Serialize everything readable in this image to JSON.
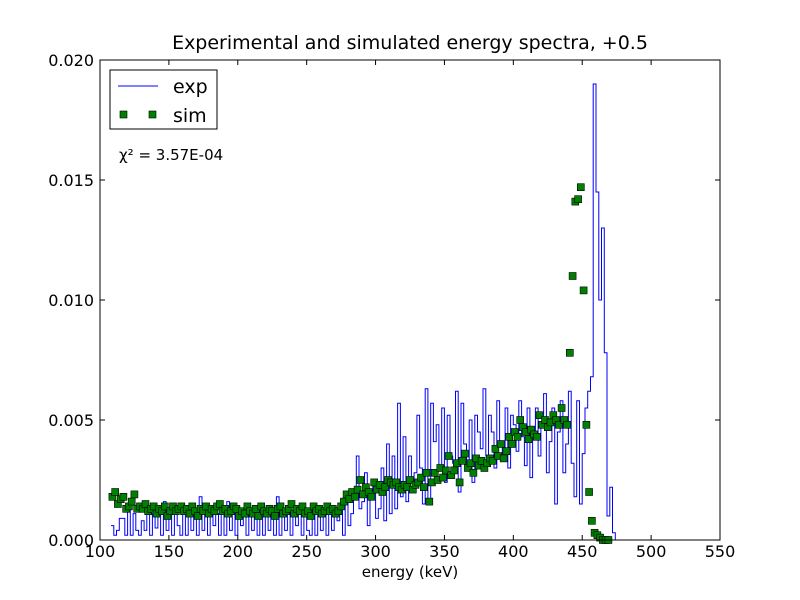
{
  "chart_data": {
    "type": "line",
    "title": "Experimental and simulated energy spectra, +0.5",
    "xlabel": "energy (keV)",
    "ylabel": "",
    "xlim": [
      100,
      550
    ],
    "ylim": [
      0,
      0.02
    ],
    "x_ticks": [
      "100",
      "150",
      "200",
      "250",
      "300",
      "350",
      "400",
      "450",
      "500",
      "550"
    ],
    "y_ticks": [
      "0.000",
      "0.005",
      "0.010",
      "0.015",
      "0.020"
    ],
    "legend": {
      "placement": "top-left",
      "entries": [
        "exp",
        "sim"
      ]
    },
    "annotation": "χ² = 3.57E-04",
    "grid": false,
    "colors": {
      "exp": "#0000ff",
      "sim": "#008000",
      "sim_edge": "#000000"
    },
    "bin_width": 2,
    "series": [
      {
        "name": "exp",
        "style": "step",
        "x_start": 108,
        "values": [
          0.0006,
          0.0002,
          0.0004,
          0.0009,
          0.0009,
          0.0002,
          0.0013,
          0.0002,
          0.0011,
          0.0004,
          0.0002,
          0.0008,
          0.0004,
          0.0013,
          0.0002,
          0.0011,
          0.0005,
          0.0013,
          0.0002,
          0.0016,
          0.0004,
          0.0011,
          0.0002,
          0.0013,
          0.0006,
          0.0002,
          0.0011,
          0.0002,
          0.0013,
          0.0004,
          0.0011,
          0.0002,
          0.0018,
          0.0004,
          0.0011,
          0.0002,
          0.0013,
          0.0006,
          0.0011,
          0.0002,
          0.0013,
          0.0002,
          0.0016,
          0.0004,
          0.0011,
          0.0002,
          0.0013,
          0.0006,
          0.0011,
          0.0002,
          0.0013,
          0.0004,
          0.0011,
          0.0002,
          0.0013,
          0.0002,
          0.0011,
          0.0004,
          0.0013,
          0.0002,
          0.0018,
          0.0002,
          0.0011,
          0.0004,
          0.0013,
          0.0002,
          0.0011,
          0.0006,
          0.0013,
          0.0002,
          0.0011,
          0.0004,
          0.0002,
          0.0013,
          0.0002,
          0.0011,
          0.0004,
          0.0013,
          0.0002,
          0.0011,
          0.0004,
          0.0011,
          0.0008,
          0.0013,
          0.0002,
          0.002,
          0.0006,
          0.0011,
          0.0018,
          0.0035,
          0.0013,
          0.0016,
          0.0028,
          0.0006,
          0.002,
          0.0024,
          0.0009,
          0.0013,
          0.003,
          0.0008,
          0.004,
          0.0011,
          0.0035,
          0.0013,
          0.0057,
          0.0018,
          0.0043,
          0.0016,
          0.0035,
          0.0024,
          0.0028,
          0.0052,
          0.003,
          0.0015,
          0.0063,
          0.0016,
          0.0057,
          0.0041,
          0.0048,
          0.003,
          0.0055,
          0.0024,
          0.0052,
          0.0035,
          0.0032,
          0.0062,
          0.002,
          0.0057,
          0.004,
          0.003,
          0.005,
          0.0024,
          0.0052,
          0.0045,
          0.0038,
          0.0063,
          0.0035,
          0.0052,
          0.0045,
          0.003,
          0.0058,
          0.0041,
          0.0035,
          0.0055,
          0.003,
          0.0052,
          0.0048,
          0.0037,
          0.0058,
          0.0043,
          0.0031,
          0.0055,
          0.0026,
          0.0045,
          0.0055,
          0.0035,
          0.0048,
          0.0061,
          0.0028,
          0.0041,
          0.0055,
          0.0015,
          0.0045,
          0.0058,
          0.0028,
          0.004,
          0.0062,
          0.0032,
          0.0018,
          0.0058,
          0.0015,
          0.0036,
          0.0055,
          0.0062,
          0.0068,
          0.019,
          0.0145,
          0.01,
          0.013,
          0.0078,
          0.001,
          0.0022,
          0.0003,
          0.0,
          0.0,
          0.0
        ]
      },
      {
        "name": "sim",
        "style": "markers",
        "x_start": 109,
        "values": [
          0.0018,
          0.002,
          0.0015,
          0.0017,
          0.0018,
          0.0013,
          0.0014,
          0.0016,
          0.0019,
          0.0013,
          0.0014,
          0.0013,
          0.0015,
          0.0012,
          0.0013,
          0.0014,
          0.0011,
          0.0013,
          0.0012,
          0.0014,
          0.001,
          0.0012,
          0.0014,
          0.0012,
          0.0013,
          0.0014,
          0.0012,
          0.0013,
          0.0011,
          0.0014,
          0.0012,
          0.001,
          0.0013,
          0.0012,
          0.0014,
          0.0011,
          0.0013,
          0.0012,
          0.0014,
          0.0015,
          0.0012,
          0.0013,
          0.0011,
          0.0012,
          0.0014,
          0.0013,
          0.001,
          0.0012,
          0.0011,
          0.0014,
          0.0012,
          0.0011,
          0.0013,
          0.001,
          0.0014,
          0.0012,
          0.0011,
          0.0013,
          0.0012,
          0.001,
          0.0013,
          0.0014,
          0.0011,
          0.0012,
          0.0013,
          0.0015,
          0.0011,
          0.0013,
          0.0012,
          0.0014,
          0.0011,
          0.0012,
          0.001,
          0.0014,
          0.0012,
          0.0013,
          0.0011,
          0.0012,
          0.0014,
          0.0012,
          0.0013,
          0.0011,
          0.0012,
          0.0014,
          0.0016,
          0.0019,
          0.0017,
          0.002,
          0.0018,
          0.0021,
          0.0025,
          0.0019,
          0.0022,
          0.002,
          0.0018,
          0.0024,
          0.0021,
          0.0023,
          0.002,
          0.0022,
          0.0025,
          0.0024,
          0.0023,
          0.0024,
          0.0022,
          0.0021,
          0.0023,
          0.0022,
          0.0025,
          0.0021,
          0.0023,
          0.0024,
          0.0026,
          0.0022,
          0.0028,
          0.0016,
          0.0024,
          0.0028,
          0.0025,
          0.003,
          0.0026,
          0.0029,
          0.0035,
          0.0027,
          0.0029,
          0.0032,
          0.0024,
          0.0033,
          0.0036,
          0.003,
          0.0032,
          0.0028,
          0.0034,
          0.0031,
          0.0033,
          0.003,
          0.0032,
          0.0034,
          0.0033,
          0.0038,
          0.0035,
          0.004,
          0.0034,
          0.0037,
          0.0043,
          0.004,
          0.0045,
          0.0043,
          0.005,
          0.0047,
          0.0045,
          0.0042,
          0.0046,
          0.0044,
          0.0043,
          0.0052,
          0.0048,
          0.005,
          0.0047,
          0.0049,
          0.0052,
          0.005,
          0.0048,
          0.0055,
          0.005,
          0.0048,
          0.0078,
          0.011,
          0.0141,
          0.0142,
          0.0147,
          0.0104,
          0.0048,
          0.002,
          0.0008,
          0.0003,
          0.0002,
          0.0001,
          0.0,
          0.0,
          0.0
        ]
      }
    ]
  }
}
